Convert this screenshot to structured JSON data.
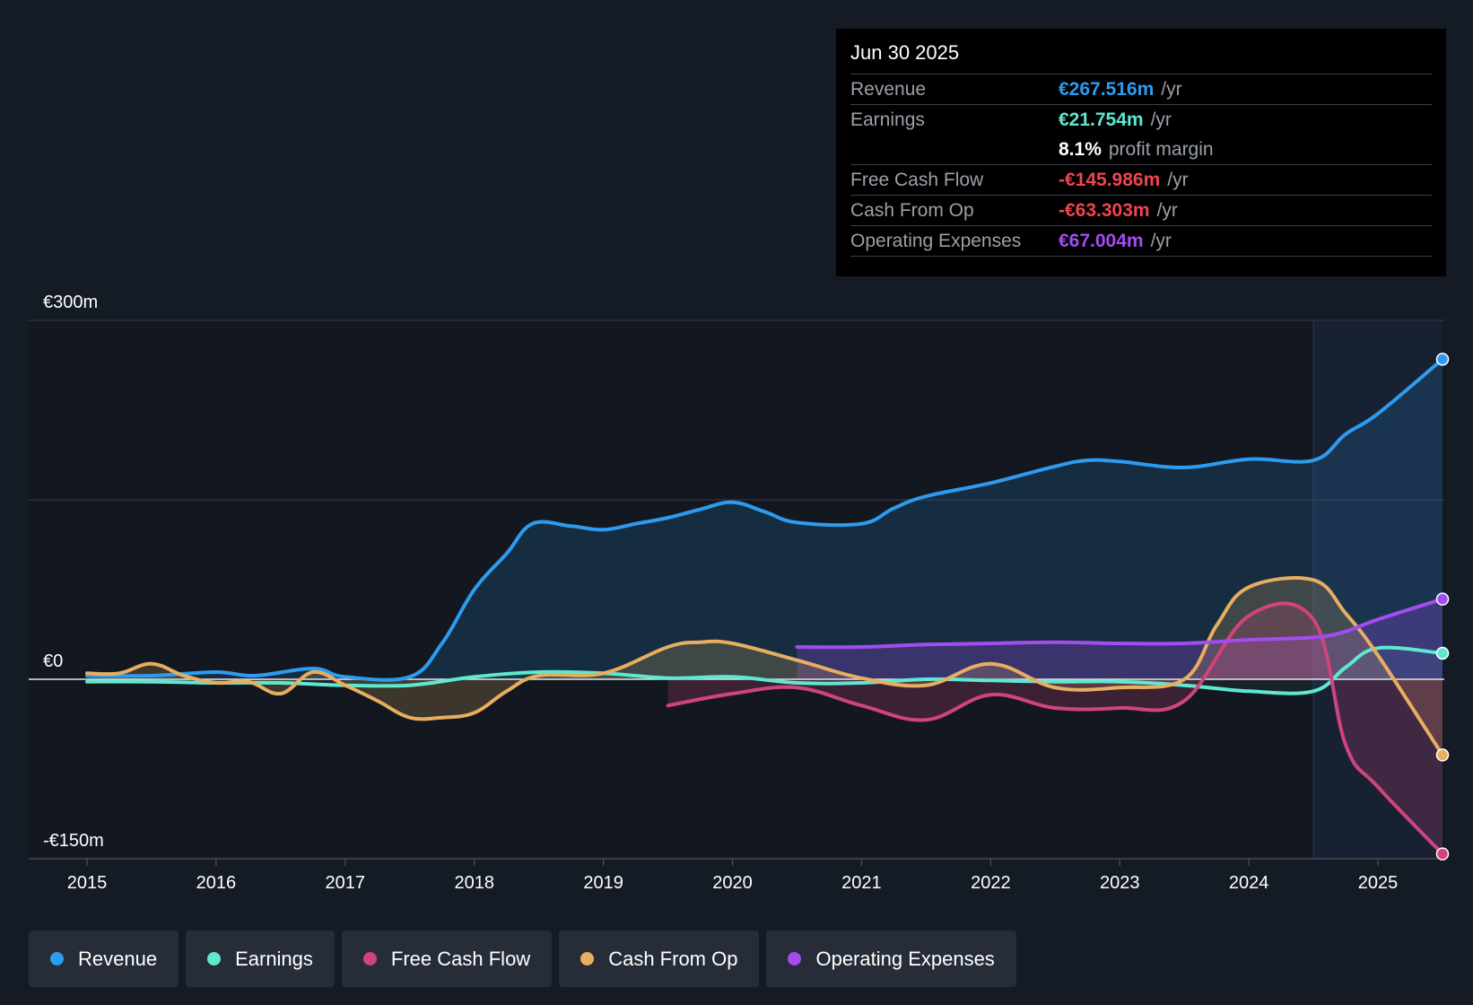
{
  "tooltip": {
    "date": "Jun 30 2025",
    "rows": [
      {
        "label": "Revenue",
        "value": "€267.516m",
        "unit": "/yr",
        "color": "#2d9cf0"
      },
      {
        "label": "Earnings",
        "value": "€21.754m",
        "unit": "/yr",
        "color": "#5ee8d0"
      },
      {
        "label": "",
        "value": "8.1%",
        "unit": "profit margin",
        "color": "#ffffff"
      },
      {
        "label": "Free Cash Flow",
        "value": "-€145.986m",
        "unit": "/yr",
        "color": "#f0454f"
      },
      {
        "label": "Cash From Op",
        "value": "-€63.303m",
        "unit": "/yr",
        "color": "#f0454f"
      },
      {
        "label": "Operating Expenses",
        "value": "€67.004m",
        "unit": "/yr",
        "color": "#a34cf0"
      }
    ]
  },
  "legend": [
    {
      "label": "Revenue",
      "color": "#2d9cf0"
    },
    {
      "label": "Earnings",
      "color": "#5ee8d0"
    },
    {
      "label": "Free Cash Flow",
      "color": "#d0447e"
    },
    {
      "label": "Cash From Op",
      "color": "#e8ae60"
    },
    {
      "label": "Operating Expenses",
      "color": "#a34cf0"
    }
  ],
  "chart_data": {
    "type": "line",
    "title": "",
    "y_tick_labels": [
      "€300m",
      "€0",
      "-€150m"
    ],
    "ylim": [
      -150,
      300
    ],
    "x_ticks": [
      "2015",
      "2016",
      "2017",
      "2018",
      "2019",
      "2020",
      "2021",
      "2022",
      "2023",
      "2024",
      "2025"
    ],
    "xlim": [
      2015,
      2025.5
    ],
    "forecast_start": 2024.5,
    "series": [
      {
        "name": "Revenue",
        "color": "#2d9cf0",
        "points": [
          [
            2015,
            3
          ],
          [
            2015.5,
            3
          ],
          [
            2016,
            6
          ],
          [
            2016.3,
            3
          ],
          [
            2016.75,
            9
          ],
          [
            2017,
            2
          ],
          [
            2017.5,
            2
          ],
          [
            2017.75,
            30
          ],
          [
            2018,
            75
          ],
          [
            2018.25,
            105
          ],
          [
            2018.45,
            130
          ],
          [
            2018.75,
            128
          ],
          [
            2019,
            125
          ],
          [
            2019.25,
            130
          ],
          [
            2019.5,
            135
          ],
          [
            2019.75,
            142
          ],
          [
            2020,
            148
          ],
          [
            2020.25,
            140
          ],
          [
            2020.5,
            131
          ],
          [
            2021,
            130
          ],
          [
            2021.25,
            143
          ],
          [
            2021.5,
            153
          ],
          [
            2022,
            164
          ],
          [
            2022.5,
            178
          ],
          [
            2022.75,
            183
          ],
          [
            2023,
            182
          ],
          [
            2023.5,
            177
          ],
          [
            2024,
            184
          ],
          [
            2024.5,
            183
          ],
          [
            2024.75,
            205
          ],
          [
            2025,
            222
          ],
          [
            2025.5,
            267.5
          ]
        ]
      },
      {
        "name": "Earnings",
        "color": "#5ee8d0",
        "points": [
          [
            2015,
            -2
          ],
          [
            2015.5,
            -2
          ],
          [
            2016,
            -3
          ],
          [
            2016.5,
            -3
          ],
          [
            2017,
            -5
          ],
          [
            2017.5,
            -5
          ],
          [
            2018,
            2
          ],
          [
            2018.5,
            6
          ],
          [
            2019,
            5
          ],
          [
            2019.5,
            1
          ],
          [
            2020,
            2
          ],
          [
            2020.5,
            -3
          ],
          [
            2021,
            -3
          ],
          [
            2021.5,
            0
          ],
          [
            2022,
            -1
          ],
          [
            2022.5,
            -2
          ],
          [
            2023,
            -2
          ],
          [
            2023.5,
            -5
          ],
          [
            2024,
            -10
          ],
          [
            2024.5,
            -10
          ],
          [
            2024.75,
            10
          ],
          [
            2025,
            26
          ],
          [
            2025.5,
            21.754
          ]
        ]
      },
      {
        "name": "Free Cash Flow",
        "color": "#d0447e",
        "points": [
          [
            2019.5,
            -22
          ],
          [
            2020,
            -12
          ],
          [
            2020.5,
            -7
          ],
          [
            2021,
            -22
          ],
          [
            2021.5,
            -34
          ],
          [
            2022,
            -13
          ],
          [
            2022.5,
            -24
          ],
          [
            2023,
            -24
          ],
          [
            2023.5,
            -18
          ],
          [
            2024,
            53
          ],
          [
            2024.5,
            50
          ],
          [
            2024.75,
            -55
          ],
          [
            2025,
            -90
          ],
          [
            2025.5,
            -146
          ]
        ]
      },
      {
        "name": "Cash From Op",
        "color": "#e8ae60",
        "points": [
          [
            2015,
            5
          ],
          [
            2015.25,
            5
          ],
          [
            2015.5,
            13
          ],
          [
            2015.75,
            3
          ],
          [
            2016,
            -3
          ],
          [
            2016.25,
            -2
          ],
          [
            2016.5,
            -12
          ],
          [
            2016.75,
            6
          ],
          [
            2017,
            -5
          ],
          [
            2017.25,
            -18
          ],
          [
            2017.5,
            -32
          ],
          [
            2017.75,
            -32
          ],
          [
            2018,
            -28
          ],
          [
            2018.25,
            -10
          ],
          [
            2018.5,
            3
          ],
          [
            2019,
            5
          ],
          [
            2019.5,
            27
          ],
          [
            2019.75,
            31
          ],
          [
            2020,
            30
          ],
          [
            2020.5,
            16
          ],
          [
            2021,
            1
          ],
          [
            2021.5,
            -5
          ],
          [
            2022,
            13
          ],
          [
            2022.5,
            -7
          ],
          [
            2023,
            -7
          ],
          [
            2023.5,
            0
          ],
          [
            2023.75,
            45
          ],
          [
            2024,
            77
          ],
          [
            2024.5,
            83
          ],
          [
            2024.75,
            55
          ],
          [
            2025,
            20
          ],
          [
            2025.5,
            -63.303
          ]
        ]
      },
      {
        "name": "Operating Expenses",
        "color": "#a34cf0",
        "points": [
          [
            2020.5,
            27
          ],
          [
            2021,
            27
          ],
          [
            2021.5,
            29
          ],
          [
            2022,
            30
          ],
          [
            2022.5,
            31
          ],
          [
            2023,
            30
          ],
          [
            2023.5,
            30
          ],
          [
            2024,
            33
          ],
          [
            2024.5,
            35
          ],
          [
            2024.75,
            40
          ],
          [
            2025,
            50
          ],
          [
            2025.5,
            67.004
          ]
        ]
      }
    ]
  }
}
